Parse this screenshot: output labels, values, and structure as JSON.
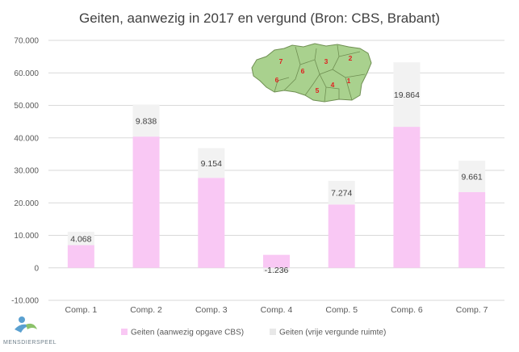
{
  "chart_data": {
    "type": "bar",
    "stacked": true,
    "title": "Geiten, aanwezig in 2017 en vergund (Bron: CBS, Brabant)",
    "categories": [
      "Comp. 1",
      "Comp. 2",
      "Comp. 3",
      "Comp. 4",
      "Comp. 5",
      "Comp. 6",
      "Comp. 7"
    ],
    "series": [
      {
        "name": "Geiten (aanwezig opgave CBS)",
        "color": "#f9c8f4",
        "values": [
          7000,
          40400,
          27700,
          4000,
          19500,
          43400,
          23300
        ]
      },
      {
        "name": "Geiten (vrije vergunde ruimte)",
        "color": "#f2f2f2",
        "values": [
          4068,
          9838,
          9154,
          -1236,
          7274,
          19864,
          9661
        ],
        "labels": [
          "4.068",
          "9.838",
          "9.154",
          "-1.236",
          "7.274",
          "19.864",
          "9.661"
        ]
      }
    ],
    "y_ticks": [
      -10000,
      0,
      10000,
      20000,
      30000,
      40000,
      50000,
      60000,
      70000
    ],
    "y_tick_labels": [
      "-10.000",
      "0",
      "10.000",
      "20.000",
      "30.000",
      "40.000",
      "50.000",
      "60.000",
      "70.000"
    ],
    "ylim": [
      -10000,
      70000
    ],
    "grid": true,
    "legend_position": "bottom"
  },
  "map_inset": {
    "region_numbers": [
      "7",
      "3",
      "2",
      "6",
      "6",
      "4",
      "5",
      "1"
    ],
    "fill_color": "#a9d18e"
  },
  "logo": {
    "text": "MENSDIERSPEEL"
  }
}
